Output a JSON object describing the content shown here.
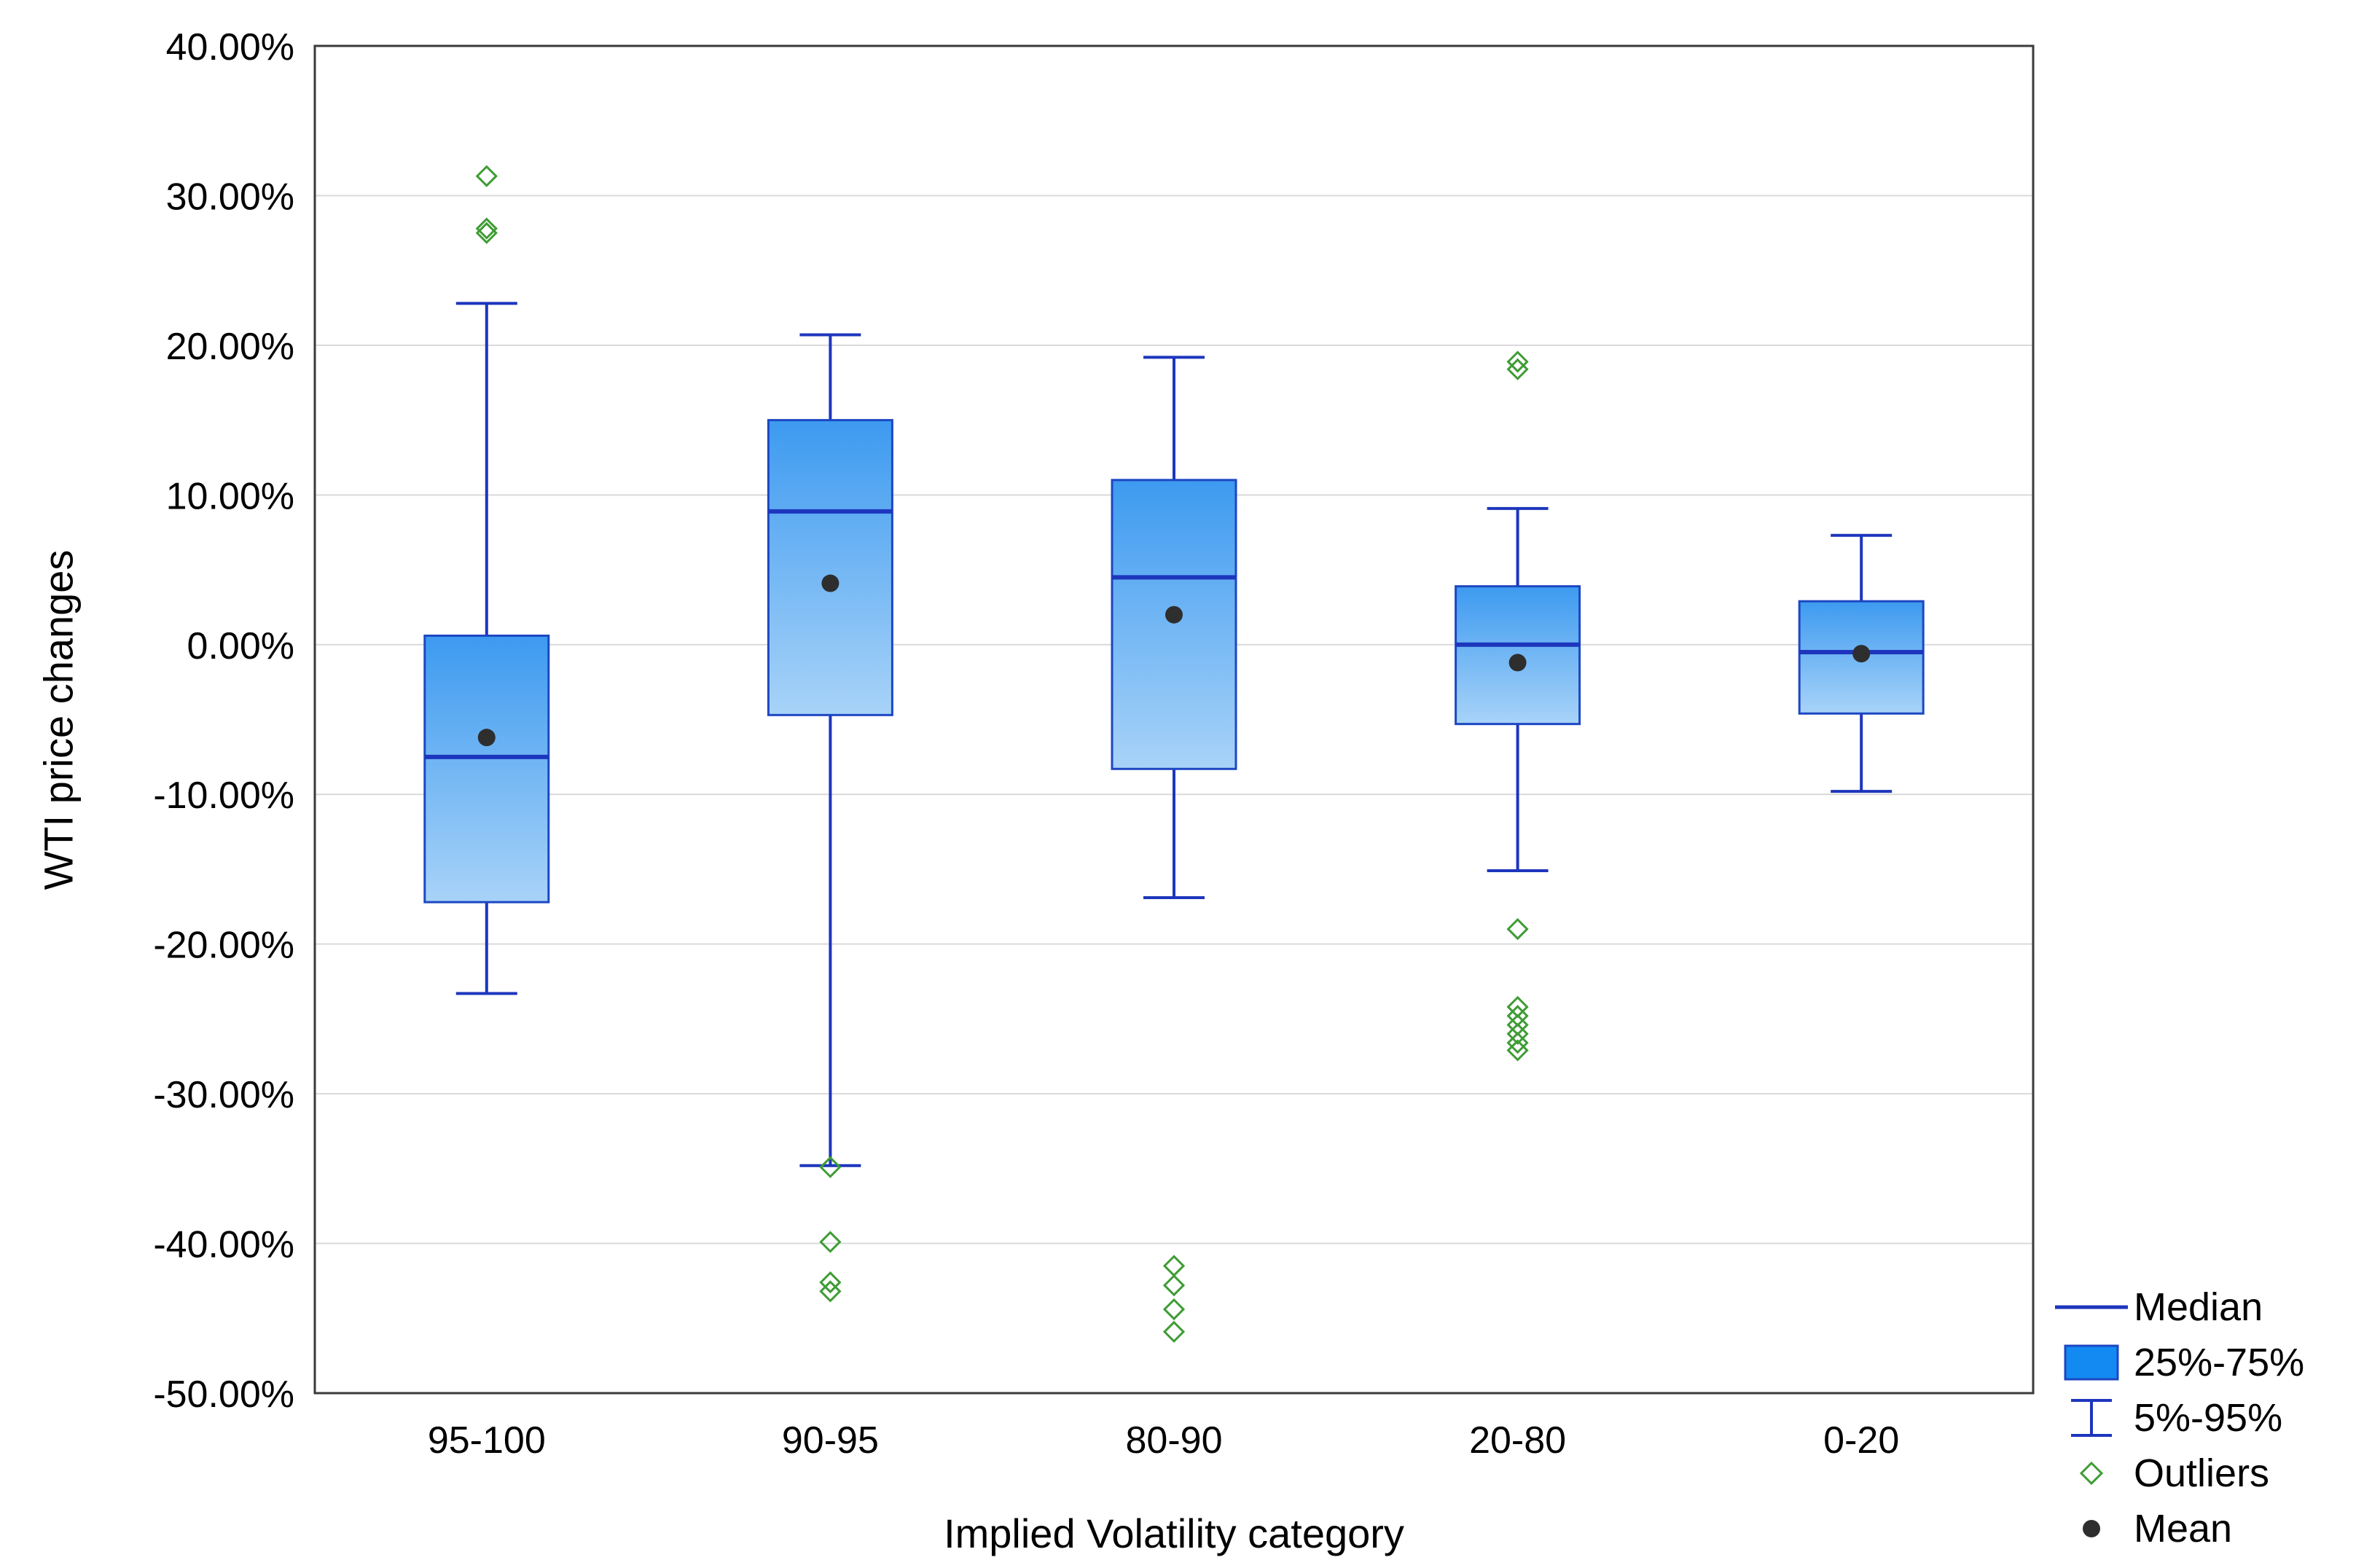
{
  "chart_data": {
    "type": "boxplot",
    "title": "",
    "xlabel": "Implied Volatility category",
    "ylabel": "WTI price changes",
    "ylim": [
      -50,
      40
    ],
    "ytick_step": 10,
    "ytick_suffix": "%",
    "grid": "horizontal",
    "legend_position": "bottom-right-outside",
    "categories": [
      "95-100",
      "90-95",
      "80-90",
      "20-80",
      "0-20"
    ],
    "series": [
      {
        "category": "95-100",
        "whisker_high": 22.8,
        "q3": 0.6,
        "median": -7.5,
        "q1": -17.2,
        "whisker_low": -23.3,
        "mean": -6.2,
        "outliers": [
          31.3,
          27.8,
          27.5
        ]
      },
      {
        "category": "90-95",
        "whisker_high": 20.7,
        "q3": 15.0,
        "median": 8.9,
        "q1": -4.7,
        "whisker_low": -34.8,
        "mean": 4.1,
        "outliers": [
          -34.9,
          -39.9,
          -42.6,
          -43.2
        ]
      },
      {
        "category": "80-90",
        "whisker_high": 19.2,
        "q3": 11.0,
        "median": 4.5,
        "q1": -8.3,
        "whisker_low": -16.9,
        "mean": 2.0,
        "outliers": [
          -41.5,
          -42.8,
          -44.4,
          -45.9
        ]
      },
      {
        "category": "20-80",
        "whisker_high": 9.1,
        "q3": 3.9,
        "median": 0.0,
        "q1": -5.3,
        "whisker_low": -15.1,
        "mean": -1.2,
        "outliers": [
          18.9,
          18.4,
          -19.0,
          -24.2,
          -24.8,
          -25.4,
          -26.0,
          -26.6,
          -27.1
        ]
      },
      {
        "category": "0-20",
        "whisker_high": 7.3,
        "q3": 2.9,
        "median": -0.5,
        "q1": -4.6,
        "whisker_low": -9.8,
        "mean": -0.6,
        "outliers": []
      }
    ],
    "legend": [
      {
        "label": "Median",
        "glyph": "median-line"
      },
      {
        "label": "25%-75%",
        "glyph": "box"
      },
      {
        "label": "5%-95%",
        "glyph": "whisker"
      },
      {
        "label": "Outliers",
        "glyph": "outlier-diamond"
      },
      {
        "label": "Mean",
        "glyph": "mean-dot"
      }
    ],
    "colors": {
      "box_gradient_top": "#3d9af0",
      "box_gradient_bottom": "#a8d3f8",
      "box_border": "#1d47c2",
      "line": "#1d36bd",
      "grid": "#d9d9d9",
      "axis": "#3a3a3a",
      "outlier": "#3f9c35",
      "mean": "#2e2e2e",
      "legend_box_fill": "#128af2",
      "text": "#000000"
    }
  }
}
